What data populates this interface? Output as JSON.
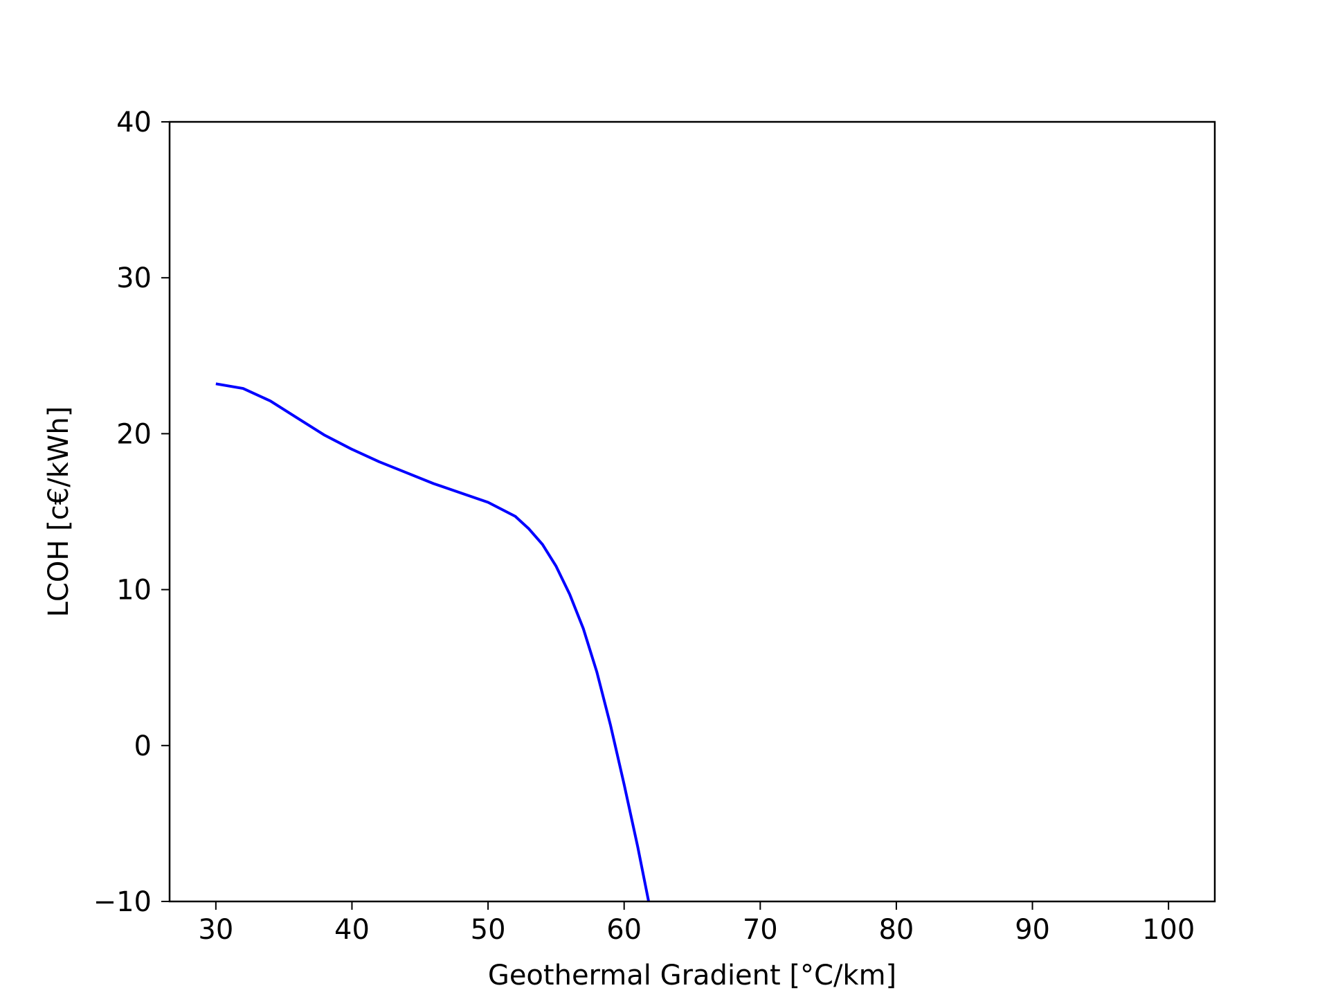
{
  "chart_data": {
    "type": "line",
    "title": "",
    "xlabel": "Geothermal Gradient [°C/km]",
    "ylabel": "LCOH [c€/kWh]",
    "xlim": [
      26.6,
      103.4
    ],
    "ylim": [
      -10,
      40
    ],
    "x_ticks": [
      30,
      40,
      50,
      60,
      70,
      80,
      90,
      100
    ],
    "x_tick_labels": [
      "30",
      "40",
      "50",
      "60",
      "70",
      "80",
      "90",
      "100"
    ],
    "y_ticks": [
      -10,
      0,
      10,
      20,
      30,
      40
    ],
    "y_tick_labels": [
      "−10",
      "0",
      "10",
      "20",
      "30",
      "40"
    ],
    "grid": false,
    "legend": "none",
    "series": [
      {
        "color": "#0000ff",
        "x": [
          30,
          32,
          34,
          36,
          38,
          40,
          42,
          44,
          46,
          48,
          50,
          52,
          53,
          54,
          55,
          56,
          57,
          58,
          59,
          60,
          61,
          61.8
        ],
        "y": [
          23.2,
          22.9,
          22.1,
          21.0,
          19.9,
          19.0,
          18.2,
          17.5,
          16.8,
          16.2,
          15.6,
          14.7,
          13.9,
          12.9,
          11.5,
          9.7,
          7.5,
          4.7,
          1.3,
          -2.5,
          -6.5,
          -10.0
        ]
      }
    ]
  }
}
